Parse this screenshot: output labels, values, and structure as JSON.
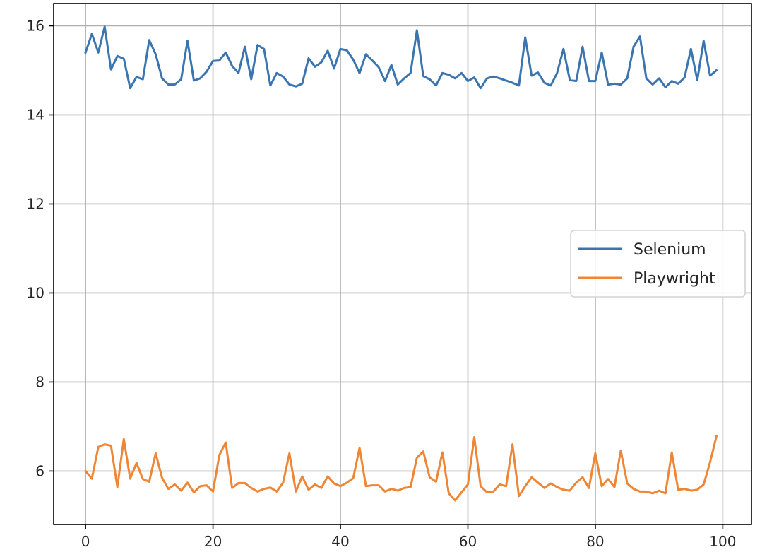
{
  "chart_data": {
    "type": "line",
    "title": "",
    "xlabel": "",
    "ylabel": "",
    "xlim": [
      -5,
      104.5
    ],
    "ylim": [
      4.8,
      16.5
    ],
    "xticks": [
      0,
      20,
      40,
      60,
      80,
      100
    ],
    "yticks": [
      6,
      8,
      10,
      12,
      14,
      16
    ],
    "xtick_labels": [
      "0",
      "20",
      "40",
      "60",
      "80",
      "100"
    ],
    "ytick_labels": [
      "6",
      "8",
      "10",
      "12",
      "14",
      "16"
    ],
    "grid": true,
    "legend_placement": "center-right",
    "series": [
      {
        "name": "Selenium",
        "color": "#3a75b0",
        "x": [
          0,
          1,
          2,
          3,
          4,
          5,
          6,
          7,
          8,
          9,
          10,
          11,
          12,
          13,
          14,
          15,
          16,
          17,
          18,
          19,
          20,
          21,
          22,
          23,
          24,
          25,
          26,
          27,
          28,
          29,
          30,
          31,
          32,
          33,
          34,
          35,
          36,
          37,
          38,
          39,
          40,
          41,
          42,
          43,
          44,
          45,
          46,
          47,
          48,
          49,
          50,
          51,
          52,
          53,
          54,
          55,
          56,
          57,
          58,
          59,
          60,
          61,
          62,
          63,
          64,
          65,
          66,
          67,
          68,
          69,
          70,
          71,
          72,
          73,
          74,
          75,
          76,
          77,
          78,
          79,
          80,
          81,
          82,
          83,
          84,
          85,
          86,
          87,
          88,
          89,
          90,
          91,
          92,
          93,
          94,
          95,
          96,
          97,
          98,
          99
        ],
        "values": [
          15.4,
          15.82,
          15.4,
          15.98,
          15.02,
          15.32,
          15.26,
          14.6,
          14.85,
          14.8,
          15.68,
          15.36,
          14.82,
          14.68,
          14.68,
          14.8,
          15.66,
          14.77,
          14.82,
          14.97,
          15.21,
          15.22,
          15.4,
          15.1,
          14.94,
          15.53,
          14.8,
          15.57,
          15.48,
          14.66,
          14.94,
          14.86,
          14.68,
          14.64,
          14.7,
          15.27,
          15.08,
          15.18,
          15.44,
          15.04,
          15.48,
          15.45,
          15.24,
          14.94,
          15.36,
          15.22,
          15.07,
          14.76,
          15.12,
          14.68,
          14.82,
          14.94,
          15.9,
          14.87,
          14.8,
          14.66,
          14.94,
          14.9,
          14.82,
          14.94,
          14.76,
          14.84,
          14.6,
          14.82,
          14.86,
          14.82,
          14.77,
          14.72,
          14.66,
          15.74,
          14.88,
          14.95,
          14.72,
          14.66,
          14.94,
          15.48,
          14.78,
          14.76,
          15.53,
          14.76,
          14.76,
          15.4,
          14.68,
          14.7,
          14.68,
          14.82,
          15.53,
          15.76,
          14.82,
          14.68,
          14.82,
          14.62,
          14.76,
          14.7,
          14.84,
          15.48,
          14.78,
          15.66,
          14.88,
          15.0
        ]
      },
      {
        "name": "Playwright",
        "color": "#ef8636",
        "x": [
          0,
          1,
          2,
          3,
          4,
          5,
          6,
          7,
          8,
          9,
          10,
          11,
          12,
          13,
          14,
          15,
          16,
          17,
          18,
          19,
          20,
          21,
          22,
          23,
          24,
          25,
          26,
          27,
          28,
          29,
          30,
          31,
          32,
          33,
          34,
          35,
          36,
          37,
          38,
          39,
          40,
          41,
          42,
          43,
          44,
          45,
          46,
          47,
          48,
          49,
          50,
          51,
          52,
          53,
          54,
          55,
          56,
          57,
          58,
          59,
          60,
          61,
          62,
          63,
          64,
          65,
          66,
          67,
          68,
          69,
          70,
          71,
          72,
          73,
          74,
          75,
          76,
          77,
          78,
          79,
          80,
          81,
          82,
          83,
          84,
          85,
          86,
          87,
          88,
          89,
          90,
          91,
          92,
          93,
          94,
          95,
          96,
          97,
          98,
          99
        ],
        "values": [
          6.0,
          5.83,
          6.54,
          6.6,
          6.57,
          5.64,
          6.72,
          5.83,
          6.18,
          5.82,
          5.76,
          6.4,
          5.85,
          5.6,
          5.7,
          5.56,
          5.74,
          5.52,
          5.66,
          5.68,
          5.54,
          6.36,
          6.64,
          5.62,
          5.73,
          5.73,
          5.62,
          5.54,
          5.6,
          5.63,
          5.54,
          5.74,
          6.4,
          5.54,
          5.88,
          5.58,
          5.7,
          5.62,
          5.88,
          5.72,
          5.66,
          5.74,
          5.84,
          6.52,
          5.66,
          5.68,
          5.68,
          5.54,
          5.6,
          5.56,
          5.62,
          5.64,
          6.3,
          6.44,
          5.86,
          5.76,
          6.42,
          5.5,
          5.34,
          5.52,
          5.7,
          6.76,
          5.66,
          5.52,
          5.54,
          5.7,
          5.66,
          6.6,
          5.44,
          5.66,
          5.86,
          5.74,
          5.62,
          5.72,
          5.64,
          5.58,
          5.56,
          5.74,
          5.86,
          5.62,
          6.4,
          5.66,
          5.82,
          5.64,
          6.46,
          5.72,
          5.6,
          5.54,
          5.54,
          5.5,
          5.56,
          5.5,
          6.42,
          5.58,
          5.6,
          5.56,
          5.58,
          5.7,
          6.2,
          6.78
        ]
      }
    ]
  }
}
